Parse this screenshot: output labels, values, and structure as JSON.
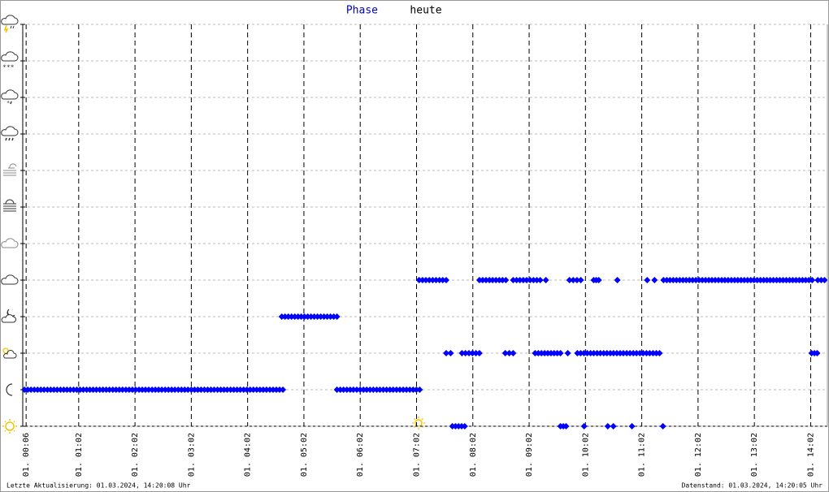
{
  "chart_data": {
    "type": "runs",
    "title_key": "Phase",
    "title": "heute",
    "footer_left": "Letzte Aktualisierung: 01.03.2024, 14:20:08 Uhr",
    "footer_right": "Datenstand: 01.03.2024, 14:20:05 Uhr",
    "color": "#0000ff",
    "xlim": [
      0.04,
      14.33
    ],
    "ylim": [
      0,
      11
    ],
    "yticks": [
      0,
      1,
      2,
      3,
      4,
      5,
      6,
      7,
      8,
      9,
      10,
      11
    ],
    "xticks": [
      {
        "value": 0.1,
        "label": "01. 00:06"
      },
      {
        "value": 1.0333,
        "label": "01. 01:02"
      },
      {
        "value": 2.0333,
        "label": "01. 02:02"
      },
      {
        "value": 3.0333,
        "label": "01. 03:02"
      },
      {
        "value": 4.0333,
        "label": "01. 04:02"
      },
      {
        "value": 5.0333,
        "label": "01. 05:02"
      },
      {
        "value": 6.0333,
        "label": "01. 06:02"
      },
      {
        "value": 7.0333,
        "label": "01. 07:02"
      },
      {
        "value": 8.0333,
        "label": "01. 08:02"
      },
      {
        "value": 9.0333,
        "label": "01. 09:02"
      },
      {
        "value": 10.0333,
        "label": "01. 10:02"
      },
      {
        "value": 11.0333,
        "label": "01. 11:02"
      },
      {
        "value": 12.0333,
        "label": "01. 12:02"
      },
      {
        "value": 13.0333,
        "label": "01. 13:02"
      },
      {
        "value": 14.0333,
        "label": "01. 14:02"
      }
    ],
    "runs": [
      {
        "level": 1,
        "start": 0.07,
        "end": 4.66
      },
      {
        "level": 1,
        "start": 5.62,
        "end": 7.09
      },
      {
        "level": 3,
        "start": 4.64,
        "end": 5.62
      },
      {
        "level": 4,
        "start": 7.08,
        "end": 7.56
      },
      {
        "level": 4,
        "start": 8.15,
        "end": 8.62
      },
      {
        "level": 4,
        "start": 8.75,
        "end": 9.23
      },
      {
        "level": 4,
        "start": 9.33,
        "end": 9.33
      },
      {
        "level": 4,
        "start": 9.75,
        "end": 9.95
      },
      {
        "level": 4,
        "start": 10.18,
        "end": 10.27
      },
      {
        "level": 4,
        "start": 10.6,
        "end": 10.6
      },
      {
        "level": 4,
        "start": 11.13,
        "end": 11.13
      },
      {
        "level": 4,
        "start": 11.26,
        "end": 11.26
      },
      {
        "level": 4,
        "start": 11.42,
        "end": 14.06
      },
      {
        "level": 4,
        "start": 14.16,
        "end": 14.28
      },
      {
        "level": 2,
        "start": 7.56,
        "end": 7.64
      },
      {
        "level": 2,
        "start": 7.84,
        "end": 8.15
      },
      {
        "level": 2,
        "start": 8.61,
        "end": 8.75
      },
      {
        "level": 2,
        "start": 9.14,
        "end": 9.59
      },
      {
        "level": 2,
        "start": 9.72,
        "end": 9.72
      },
      {
        "level": 2,
        "start": 9.89,
        "end": 11.35
      },
      {
        "level": 2,
        "start": 14.05,
        "end": 14.15
      },
      {
        "level": 0,
        "start": 7.67,
        "end": 7.89
      },
      {
        "level": 0,
        "start": 9.59,
        "end": 9.69
      },
      {
        "level": 0,
        "start": 10.01,
        "end": 10.01
      },
      {
        "level": 0,
        "start": 10.43,
        "end": 10.43
      },
      {
        "level": 0,
        "start": 10.53,
        "end": 10.53
      },
      {
        "level": 0,
        "start": 10.86,
        "end": 10.86
      },
      {
        "level": 0,
        "start": 11.41,
        "end": 11.41
      }
    ]
  }
}
